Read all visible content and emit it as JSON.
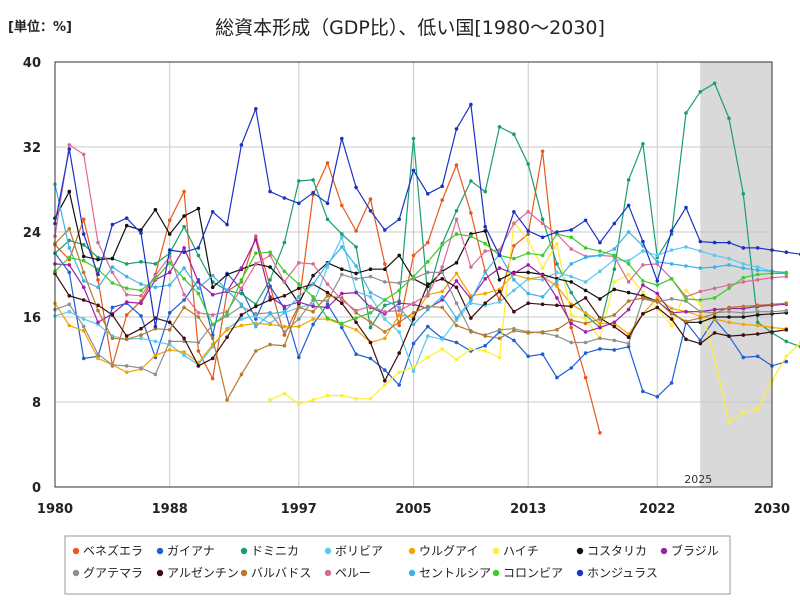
{
  "chart_data": {
    "type": "line",
    "title": "総資本形成（GDP比）、低い国[1980～2030]",
    "unit_label": "[単位：%]",
    "xlim": [
      1980,
      2030
    ],
    "ylim": [
      0,
      40
    ],
    "x_ticks": [
      1980,
      1988,
      1997,
      2005,
      2013,
      2022,
      2030
    ],
    "y_ticks": [
      0,
      8,
      16,
      24,
      32,
      40
    ],
    "grid": true,
    "forecast_region": {
      "start": 2025,
      "end": 2030,
      "label": "2025",
      "color": "#d9d9d9"
    },
    "legend_position": "bottom",
    "series": [
      {
        "name": "ベネズエラ",
        "color": "#e8591a",
        "x_start": 1980,
        "values": [
          22.8,
          21.4,
          25.2,
          19.5,
          11.4,
          16.2,
          17.5,
          20.0,
          25.1,
          27.8,
          12.8,
          10.2,
          18.4,
          19.3,
          23.6,
          18.9,
          14.3,
          17.1,
          27.5,
          30.5,
          26.5,
          24.1,
          27.1,
          21.0,
          15.2,
          21.8,
          23.0,
          27.0,
          30.3,
          25.8,
          20.3,
          17.6,
          22.7,
          23.8,
          31.6,
          19.0,
          15.0,
          10.3,
          5.1
        ]
      },
      {
        "name": "ガイアナ",
        "color": "#1f5fd6",
        "x_start": 1980,
        "values": [
          22.0,
          20.2,
          12.1,
          12.3,
          16.9,
          17.3,
          16.1,
          12.2,
          16.4,
          17.6,
          19.5,
          14.3,
          20.1,
          18.6,
          15.8,
          18.9,
          16.8,
          12.2,
          15.3,
          17.2,
          15.0,
          12.5,
          12.1,
          11.0,
          9.6,
          13.5,
          15.1,
          14.0,
          13.6,
          12.8,
          13.3,
          14.6,
          13.8,
          12.3,
          12.5,
          10.3,
          11.2,
          12.6,
          13.0,
          12.9,
          13.2,
          9.0,
          8.5,
          9.8,
          15.5,
          13.8,
          15.8,
          14.2,
          12.2,
          12.3,
          11.4,
          11.8
        ]
      },
      {
        "name": "ドミニカ",
        "color": "#1a9e6e",
        "x_start": 1980,
        "values": [
          22.0,
          23.2,
          22.8,
          21.6,
          21.5,
          21.0,
          21.2,
          21.0,
          22.0,
          24.5,
          21.8,
          19.3,
          18.5,
          18.2,
          17.2,
          19.5,
          23.0,
          28.8,
          28.9,
          25.2,
          23.8,
          22.6,
          15.0,
          17.1,
          17.5,
          32.8,
          18.0,
          22.9,
          26.0,
          28.8,
          27.8,
          33.9,
          33.2,
          30.4,
          25.2,
          21.0,
          18.3,
          16.2,
          15.0,
          20.5,
          28.9,
          32.3,
          21.6,
          23.8,
          35.2,
          37.2,
          38.0,
          34.7,
          27.6,
          15.5,
          14.5,
          13.7,
          13.2,
          12.8
        ]
      },
      {
        "name": "ボリビア",
        "color": "#5bc8ee",
        "x_start": 1980,
        "values": [
          16.1,
          16.5,
          15.8,
          15.3,
          14.2,
          13.9,
          14.0,
          13.7,
          13.4,
          12.4,
          11.5,
          13.2,
          14.9,
          15.8,
          16.1,
          15.4,
          16.4,
          16.9,
          17.2,
          20.7,
          23.5,
          18.4,
          17.9,
          15.8,
          14.6,
          10.9,
          14.2,
          13.9,
          15.7,
          17.3,
          17.1,
          17.4,
          18.5,
          19.6,
          19.5,
          20.2,
          19.8,
          19.3,
          20.3,
          21.4,
          21.3,
          22.2,
          21.8,
          22.3,
          22.6,
          22.2,
          21.8,
          21.5,
          21.0,
          20.7,
          20.3,
          20.1
        ]
      },
      {
        "name": "ウルグアイ",
        "color": "#f5a300",
        "x_start": 1980,
        "values": [
          17.3,
          15.2,
          14.7,
          12.1,
          11.5,
          10.8,
          11.1,
          12.4,
          12.9,
          12.7,
          11.7,
          13.4,
          14.8,
          15.2,
          15.4,
          15.3,
          15.1,
          15.1,
          15.8,
          15.8,
          15.3,
          14.8,
          13.6,
          14.0,
          16.2,
          16.0,
          18.1,
          18.4,
          20.1,
          18.0,
          18.2,
          18.6,
          20.0,
          19.6,
          19.8,
          18.9,
          17.2,
          16.4,
          15.4,
          15.4,
          14.4,
          16.3,
          17.8,
          16.8,
          16.5,
          16.1,
          15.8,
          15.5,
          15.3,
          15.2,
          15.0,
          14.9
        ]
      },
      {
        "name": "ハイチ",
        "color": "#ffee33",
        "x_start": 1995,
        "values": [
          8.2,
          8.8,
          7.8,
          8.2,
          8.6,
          8.6,
          8.3,
          8.3,
          9.6,
          10.8,
          11.3,
          12.2,
          13.0,
          12.0,
          13.0,
          12.8,
          12.2,
          24.9,
          23.2,
          20.6,
          22.9,
          16.2,
          15.8,
          14.0,
          19.3,
          20.0,
          18.3,
          16.8,
          15.2,
          18.5,
          17.2,
          12.1,
          6.1,
          7.0,
          7.3,
          10.0,
          12.3,
          13.6,
          15.1,
          16.0,
          16.3
        ]
      },
      {
        "name": "コスタリカ",
        "color": "#111111",
        "x_start": 1980,
        "values": [
          25.3,
          27.8,
          21.7,
          21.4,
          21.5,
          24.6,
          24.2,
          26.1,
          23.8,
          25.5,
          26.2,
          18.8,
          20.0,
          20.5,
          21.0,
          20.7,
          19.3,
          17.3,
          19.9,
          21.1,
          20.5,
          20.1,
          20.5,
          20.5,
          21.8,
          19.6,
          18.9,
          20.3,
          21.1,
          23.8,
          24.1,
          19.5,
          20.2,
          20.2,
          20.0,
          19.6,
          19.3,
          18.5,
          17.7,
          18.6,
          18.3,
          18.0,
          17.5,
          16.4,
          15.5,
          15.5,
          16.0,
          16.0,
          16.0,
          16.2,
          16.3,
          16.4
        ]
      },
      {
        "name": "ブラジル",
        "color": "#9b1fa8",
        "x_start": 1980,
        "values": [
          21.0,
          20.9,
          18.8,
          15.5,
          16.3,
          17.4,
          17.3,
          19.5,
          20.2,
          22.5,
          19.3,
          18.1,
          18.4,
          20.6,
          23.3,
          17.9,
          17.0,
          17.4,
          17.0,
          16.9,
          18.2,
          18.3,
          16.9,
          16.3,
          17.3,
          17.2,
          16.8,
          17.6,
          19.4,
          17.7,
          19.6,
          20.6,
          20.1,
          20.9,
          19.9,
          17.8,
          15.4,
          14.6,
          15.0,
          15.5,
          16.7,
          19.0,
          18.2,
          16.4,
          16.5,
          16.5,
          16.7,
          16.8,
          16.8,
          17.0,
          17.1,
          17.2
        ]
      },
      {
        "name": "グアテマラ",
        "color": "#8f8f8f",
        "x_start": 1980,
        "values": [
          16.7,
          17.2,
          15.1,
          12.5,
          11.5,
          11.4,
          11.2,
          10.6,
          13.7,
          13.7,
          13.6,
          15.3,
          16.1,
          17.0,
          16.3,
          16.4,
          14.6,
          15.8,
          17.6,
          17.5,
          20.0,
          19.6,
          19.8,
          19.3,
          19.2,
          19.6,
          20.2,
          20.2,
          17.3,
          14.6,
          14.3,
          14.8,
          14.9,
          14.6,
          14.5,
          14.2,
          13.6,
          13.6,
          14.0,
          13.8,
          13.5,
          17.7,
          17.4,
          17.7,
          17.5,
          16.5,
          16.4,
          16.5,
          16.4,
          16.5,
          16.5,
          16.6
        ]
      },
      {
        "name": "アルゼンチン",
        "color": "#3b0e0e",
        "x_start": 1980,
        "values": [
          20.1,
          18.0,
          17.6,
          17.1,
          16.2,
          14.2,
          14.9,
          15.9,
          15.5,
          14.0,
          11.4,
          12.1,
          14.1,
          16.2,
          17.0,
          17.6,
          18.0,
          18.7,
          19.1,
          18.3,
          17.3,
          15.5,
          13.6,
          10.0,
          12.6,
          15.8,
          19.1,
          19.6,
          18.8,
          15.9,
          17.3,
          18.4,
          16.5,
          17.3,
          17.2,
          17.1,
          17.0,
          17.8,
          15.9,
          15.1,
          14.1,
          16.3,
          16.9,
          15.8,
          13.9,
          13.5,
          14.5,
          14.2,
          14.3,
          14.4,
          14.6,
          14.8
        ]
      },
      {
        "name": "バルバドス",
        "color": "#b57b2b",
        "x_start": 1980,
        "values": [
          22.9,
          24.3,
          20.2,
          16.6,
          14.0,
          13.9,
          14.3,
          14.9,
          14.8,
          16.9,
          16.0,
          14.0,
          8.2,
          10.6,
          12.8,
          13.4,
          13.3,
          16.9,
          16.5,
          18.0,
          17.8,
          16.4,
          15.5,
          14.6,
          15.5,
          16.4,
          17.0,
          16.9,
          15.2,
          14.7,
          14.2,
          14.0,
          14.7,
          14.5,
          14.6,
          14.8,
          15.7,
          15.4,
          15.8,
          16.2,
          17.5,
          17.8,
          17.5,
          16.3,
          15.6,
          15.9,
          16.3,
          16.9,
          17.0,
          17.1,
          17.2,
          17.3
        ]
      },
      {
        "name": "ペルー",
        "color": "#d96b98",
        "x_start": 1980,
        "values": [
          23.6,
          32.2,
          31.3,
          23.0,
          20.2,
          18.1,
          18.0,
          19.9,
          21.7,
          18.1,
          16.4,
          16.2,
          16.5,
          18.7,
          21.0,
          21.8,
          19.3,
          21.1,
          21.0,
          19.1,
          17.6,
          16.6,
          17.0,
          16.5,
          16.6,
          17.3,
          18.1,
          20.7,
          25.2,
          20.7,
          22.2,
          22.3,
          24.8,
          25.9,
          24.8,
          23.8,
          22.4,
          21.7,
          21.8,
          21.7,
          19.3,
          20.9,
          21.0,
          19.6,
          17.9,
          18.4,
          18.7,
          19.0,
          19.3,
          19.5,
          19.7,
          19.8
        ]
      },
      {
        "name": "セントルシア",
        "color": "#3db3e8",
        "x_start": 1980,
        "values": [
          28.5,
          22.5,
          19.4,
          18.8,
          20.7,
          19.8,
          19.1,
          18.8,
          19.0,
          20.6,
          18.7,
          19.9,
          18.5,
          17.2,
          15.1,
          16.3,
          16.5,
          17.9,
          19.1,
          21.0,
          22.6,
          20.8,
          18.3,
          17.6,
          16.9,
          15.3,
          16.7,
          17.9,
          15.9,
          17.6,
          20.2,
          21.9,
          19.5,
          18.2,
          17.9,
          19.4,
          21.0,
          21.6,
          21.8,
          22.4,
          24.0,
          22.7,
          21.2,
          21.0,
          20.8,
          20.6,
          20.7,
          20.9,
          20.6,
          20.4,
          20.3,
          20.2
        ]
      },
      {
        "name": "コロンビア",
        "color": "#3dcc2b",
        "x_start": 1980,
        "values": [
          20.3,
          21.6,
          21.3,
          20.5,
          19.2,
          18.7,
          18.5,
          19.6,
          21.1,
          19.6,
          18.2,
          15.3,
          16.3,
          19.5,
          22.0,
          22.1,
          20.3,
          19.1,
          17.9,
          15.9,
          15.4,
          15.9,
          16.4,
          17.6,
          18.5,
          19.8,
          21.2,
          22.8,
          23.8,
          23.6,
          22.9,
          21.8,
          21.5,
          22.0,
          21.8,
          23.8,
          23.5,
          22.5,
          22.2,
          21.8,
          21.0,
          19.4,
          19.0,
          19.6,
          17.7,
          17.6,
          17.8,
          18.7,
          19.7,
          20.0,
          20.1,
          20.1
        ]
      },
      {
        "name": "ホンジュラス",
        "color": "#1a33c7",
        "x_start": 1980,
        "values": [
          24.8,
          31.8,
          23.8,
          20.0,
          24.7,
          25.3,
          23.9,
          15.1,
          22.3,
          22.1,
          22.5,
          25.9,
          24.7,
          32.2,
          35.6,
          27.8,
          27.2,
          26.7,
          27.7,
          26.7,
          32.8,
          28.2,
          26.0,
          24.2,
          25.2,
          29.8,
          27.6,
          28.3,
          33.7,
          36.0,
          24.5,
          21.8,
          25.9,
          24.1,
          23.5,
          24.0,
          24.2,
          25.1,
          23.0,
          24.8,
          26.5,
          23.1,
          19.4,
          24.1,
          26.3,
          23.1,
          23.0,
          23.0,
          22.5,
          22.5,
          22.3,
          22.1,
          21.9,
          21.5
        ]
      }
    ]
  }
}
